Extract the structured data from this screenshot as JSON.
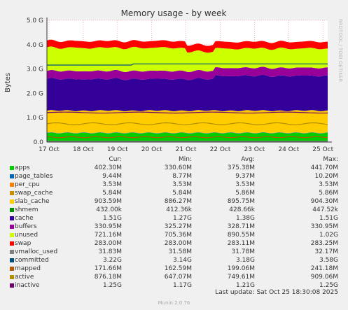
{
  "chart_data": {
    "type": "area",
    "title": "Memory usage - by week",
    "ylabel": "Bytes",
    "side_label": "RRDTOOL / TOBI OETIKER",
    "ylim": [
      0,
      5.0
    ],
    "y_unit": "G",
    "y_ticks": [
      "0.0",
      "1.0 G",
      "2.0 G",
      "3.0 G",
      "4.0 G",
      "5.0 G"
    ],
    "x_ticks": [
      "17 Oct",
      "18 Oct",
      "19 Oct",
      "20 Oct",
      "21 Oct",
      "22 Oct",
      "23 Oct",
      "24 Oct",
      "25 Oct"
    ],
    "grid": true,
    "stack_order": [
      "apps",
      "page_tables",
      "per_cpu",
      "swap_cache",
      "slab_cache",
      "shmem",
      "cache",
      "buffers",
      "unused",
      "swap"
    ],
    "stack_values_g": {
      "apps": 0.37,
      "page_tables": 0.009,
      "per_cpu": 0.0035,
      "swap_cache": 0.006,
      "slab_cache": 0.9,
      "shmem": 0.0004,
      "cache": 1.38,
      "buffers": 0.33,
      "unused": 0.89,
      "swap": 0.28
    },
    "line_values_g": {
      "committed": 3.18,
      "vmalloc_used": 0.032,
      "mapped": 0.2,
      "active": 0.75,
      "inactive": 1.21
    }
  },
  "legend": {
    "headers": [
      "Cur:",
      "Min:",
      "Avg:",
      "Max:"
    ],
    "rows": [
      {
        "name": "apps",
        "color": "#00cc00",
        "cur": "402.30M",
        "min": "330.60M",
        "avg": "375.38M",
        "max": "441.70M"
      },
      {
        "name": "page_tables",
        "color": "#0066b3",
        "cur": "9.44M",
        "min": "8.77M",
        "avg": "9.37M",
        "max": "10.20M"
      },
      {
        "name": "per_cpu",
        "color": "#ff8000",
        "cur": "3.53M",
        "min": "3.53M",
        "avg": "3.53M",
        "max": "3.53M"
      },
      {
        "name": "swap_cache",
        "color": "#cc8f00",
        "cur": "5.84M",
        "min": "5.84M",
        "avg": "5.86M",
        "max": "5.86M"
      },
      {
        "name": "slab_cache",
        "color": "#ffcc00",
        "cur": "903.59M",
        "min": "886.27M",
        "avg": "895.75M",
        "max": "904.30M"
      },
      {
        "name": "shmem",
        "color": "#008f00",
        "cur": "432.00k",
        "min": "412.36k",
        "avg": "428.66k",
        "max": "447.52k"
      },
      {
        "name": "cache",
        "color": "#330099",
        "cur": "1.51G",
        "min": "1.27G",
        "avg": "1.38G",
        "max": "1.51G"
      },
      {
        "name": "buffers",
        "color": "#990099",
        "cur": "330.95M",
        "min": "325.27M",
        "avg": "328.71M",
        "max": "330.95M"
      },
      {
        "name": "unused",
        "color": "#ccff00",
        "cur": "721.16M",
        "min": "705.36M",
        "avg": "890.55M",
        "max": "1.02G"
      },
      {
        "name": "swap",
        "color": "#ff0000",
        "cur": "283.00M",
        "min": "283.00M",
        "avg": "283.11M",
        "max": "283.25M"
      },
      {
        "name": "vmalloc_used",
        "color": "#808080",
        "cur": "31.83M",
        "min": "31.58M",
        "avg": "31.78M",
        "max": "32.17M"
      },
      {
        "name": "committed",
        "color": "#004d80",
        "cur": "3.22G",
        "min": "3.14G",
        "avg": "3.18G",
        "max": "3.58G"
      },
      {
        "name": "mapped",
        "color": "#b35a00",
        "cur": "171.66M",
        "min": "162.59M",
        "avg": "199.06M",
        "max": "241.18M"
      },
      {
        "name": "active",
        "color": "#b38f00",
        "cur": "876.18M",
        "min": "647.07M",
        "avg": "749.61M",
        "max": "909.06M"
      },
      {
        "name": "inactive",
        "color": "#6b006b",
        "cur": "1.25G",
        "min": "1.17G",
        "avg": "1.21G",
        "max": "1.25G"
      }
    ]
  },
  "footer": {
    "last_update": "Last update: Sat Oct 25 18:30:08 2025",
    "version": "Munin 2.0.76"
  }
}
